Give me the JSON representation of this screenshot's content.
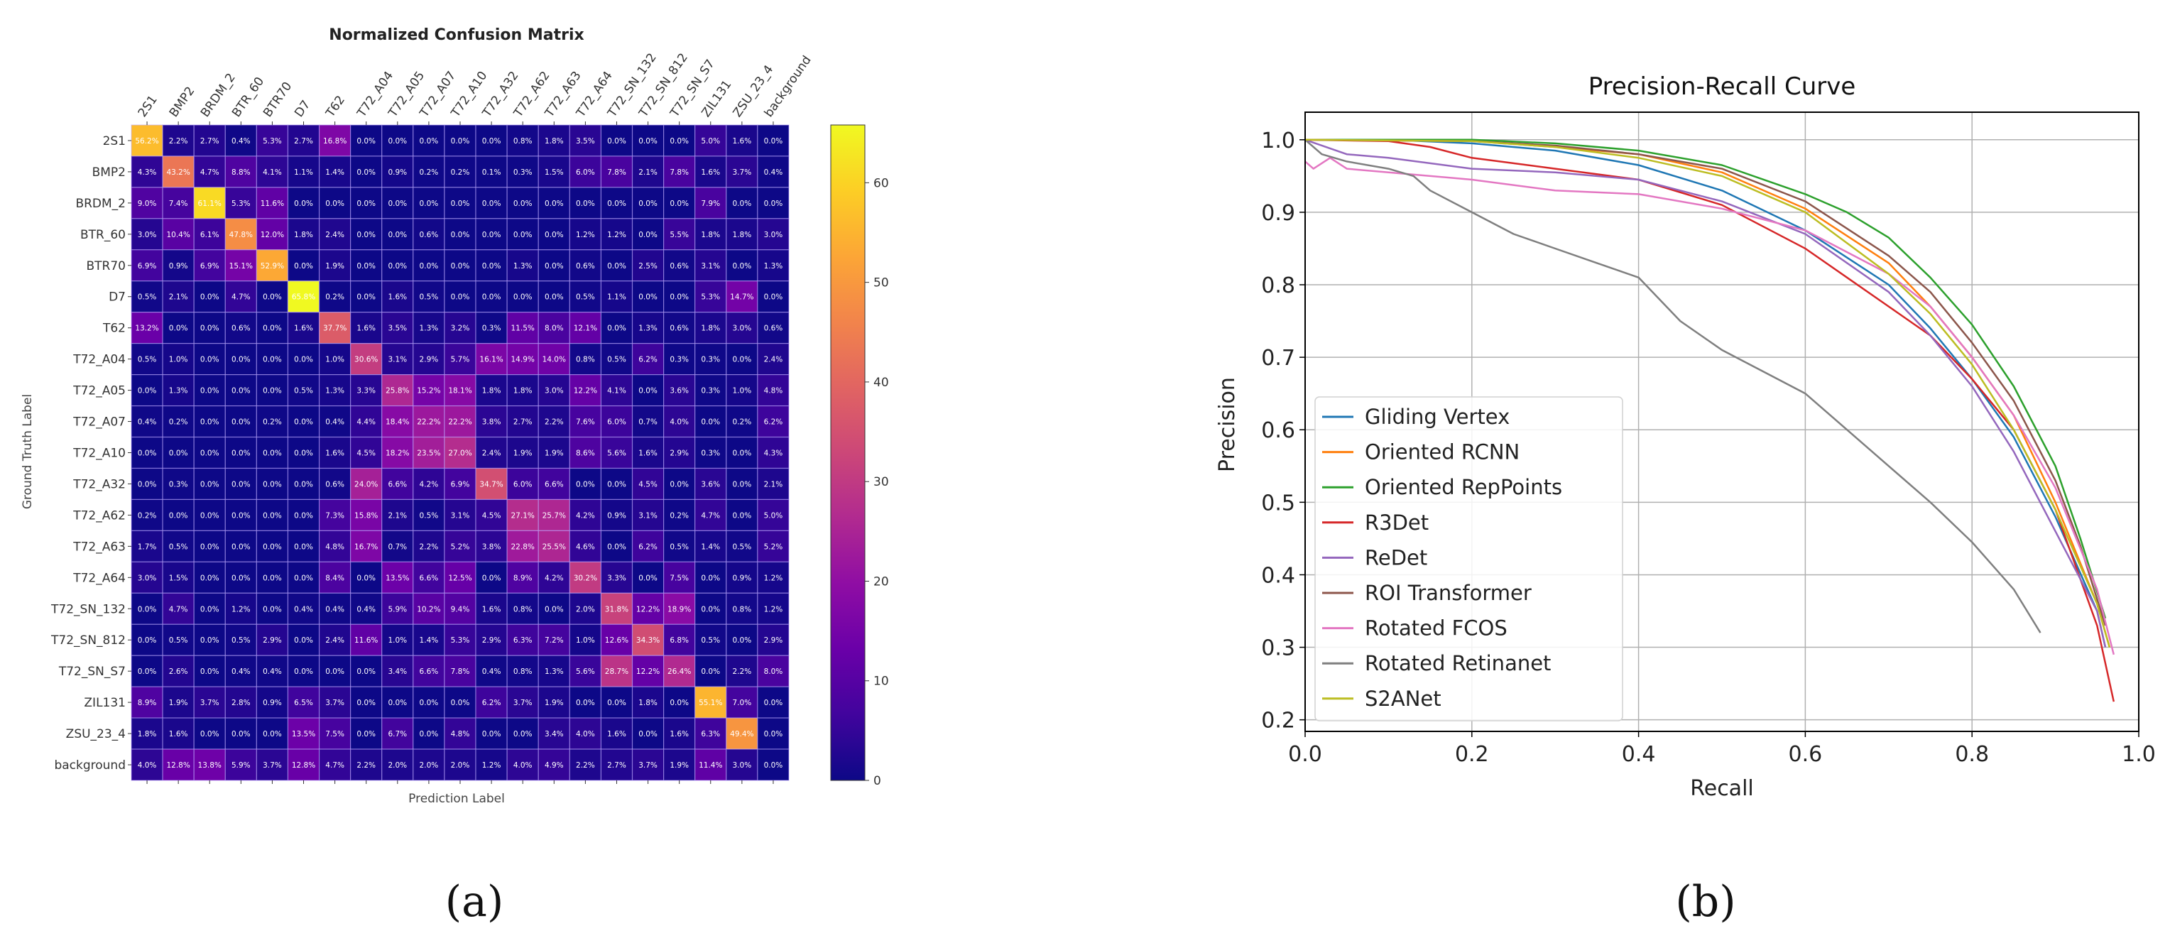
{
  "panel_labels": [
    "(a)",
    "(b)"
  ],
  "chart_data": [
    {
      "type": "heatmap",
      "title": "Normalized Confusion Matrix",
      "xlabel": "Prediction Label",
      "ylabel": "Ground Truth Label",
      "x_categories": [
        "2S1",
        "BMP2",
        "BRDM_2",
        "BTR_60",
        "BTR70",
        "D7",
        "T62",
        "T72_A04",
        "T72_A05",
        "T72_A07",
        "T72_A10",
        "T72_A32",
        "T72_A62",
        "T72_A63",
        "T72_A64",
        "T72_SN_132",
        "T72_SN_812",
        "T72_SN_S7",
        "ZIL131",
        "ZSU_23_4",
        "background"
      ],
      "y_categories": [
        "2S1",
        "BMP2",
        "BRDM_2",
        "BTR_60",
        "BTR70",
        "D7",
        "T62",
        "T72_A04",
        "T72_A05",
        "T72_A07",
        "T72_A10",
        "T72_A32",
        "T72_A62",
        "T72_A63",
        "T72_A64",
        "T72_SN_132",
        "T72_SN_812",
        "T72_SN_S7",
        "ZIL131",
        "ZSU_23_4",
        "background"
      ],
      "value_suffix": "%",
      "values": [
        [
          56.2,
          2.2,
          2.7,
          0.4,
          5.3,
          2.7,
          16.8,
          0.0,
          0.0,
          0.0,
          0.0,
          0.0,
          0.8,
          1.8,
          3.5,
          0.0,
          0.0,
          0.0,
          5.0,
          1.6,
          0.0
        ],
        [
          4.3,
          43.2,
          4.7,
          8.8,
          4.1,
          1.1,
          1.4,
          0.0,
          0.9,
          0.2,
          0.2,
          0.1,
          0.3,
          1.5,
          6.0,
          7.8,
          2.1,
          7.8,
          1.6,
          3.7,
          0.4
        ],
        [
          9.0,
          7.4,
          61.1,
          5.3,
          11.6,
          0.0,
          0.0,
          0.0,
          0.0,
          0.0,
          0.0,
          0.0,
          0.0,
          0.0,
          0.0,
          0.0,
          0.0,
          0.0,
          7.9,
          0.0,
          0.0
        ],
        [
          3.0,
          10.4,
          6.1,
          47.8,
          12.0,
          1.8,
          2.4,
          0.0,
          0.0,
          0.6,
          0.0,
          0.0,
          0.0,
          0.0,
          1.2,
          1.2,
          0.0,
          5.5,
          1.8,
          1.8,
          3.0
        ],
        [
          6.9,
          0.9,
          6.9,
          15.1,
          52.9,
          0.0,
          1.9,
          0.0,
          0.0,
          0.0,
          0.0,
          0.0,
          1.3,
          0.0,
          0.6,
          0.0,
          2.5,
          0.6,
          3.1,
          0.0,
          1.3
        ],
        [
          0.5,
          2.1,
          0.0,
          4.7,
          0.0,
          65.8,
          0.2,
          0.0,
          1.6,
          0.5,
          0.0,
          0.0,
          0.0,
          0.0,
          0.5,
          1.1,
          0.0,
          0.0,
          5.3,
          14.7,
          0.0
        ],
        [
          13.2,
          0.0,
          0.0,
          0.6,
          0.0,
          1.6,
          37.7,
          1.6,
          3.5,
          1.3,
          3.2,
          0.3,
          11.5,
          8.0,
          12.1,
          0.0,
          1.3,
          0.6,
          1.8,
          3.0,
          0.6
        ],
        [
          0.5,
          1.0,
          0.0,
          0.0,
          0.0,
          0.0,
          1.0,
          30.6,
          3.1,
          2.9,
          5.7,
          16.1,
          14.9,
          14.0,
          0.8,
          0.5,
          6.2,
          0.3,
          0.3,
          0.0,
          2.4
        ],
        [
          0.0,
          1.3,
          0.0,
          0.0,
          0.0,
          0.5,
          1.3,
          3.3,
          25.8,
          15.2,
          18.1,
          1.8,
          1.8,
          3.0,
          12.2,
          4.1,
          0.0,
          3.6,
          0.3,
          1.0,
          4.8
        ],
        [
          0.4,
          0.2,
          0.0,
          0.0,
          0.2,
          0.0,
          0.4,
          4.4,
          18.4,
          22.2,
          22.2,
          3.8,
          2.7,
          2.2,
          7.6,
          6.0,
          0.7,
          4.0,
          0.0,
          0.2,
          6.2
        ],
        [
          0.0,
          0.0,
          0.0,
          0.0,
          0.0,
          0.0,
          1.6,
          4.5,
          18.2,
          23.5,
          27.0,
          2.4,
          1.9,
          1.9,
          8.6,
          5.6,
          1.6,
          2.9,
          0.3,
          0.0,
          4.3
        ],
        [
          0.0,
          0.3,
          0.0,
          0.0,
          0.0,
          0.0,
          0.6,
          24.0,
          6.6,
          4.2,
          6.9,
          34.7,
          6.0,
          6.6,
          0.0,
          0.0,
          4.5,
          0.0,
          3.6,
          0.0,
          2.1
        ],
        [
          0.2,
          0.0,
          0.0,
          0.0,
          0.0,
          0.0,
          7.3,
          15.8,
          2.1,
          0.5,
          3.1,
          4.5,
          27.1,
          25.7,
          4.2,
          0.9,
          3.1,
          0.2,
          4.7,
          0.0,
          5.0
        ],
        [
          1.7,
          0.5,
          0.0,
          0.0,
          0.0,
          0.0,
          4.8,
          16.7,
          0.7,
          2.2,
          5.2,
          3.8,
          22.8,
          25.5,
          4.6,
          0.0,
          6.2,
          0.5,
          1.4,
          0.5,
          5.2
        ],
        [
          3.0,
          1.5,
          0.0,
          0.0,
          0.0,
          0.0,
          8.4,
          0.0,
          13.5,
          6.6,
          12.5,
          0.0,
          8.9,
          4.2,
          30.2,
          3.3,
          0.0,
          7.5,
          0.0,
          0.9,
          1.2
        ],
        [
          0.0,
          4.7,
          0.0,
          1.2,
          0.0,
          0.4,
          0.4,
          0.4,
          5.9,
          10.2,
          9.4,
          1.6,
          0.8,
          0.0,
          2.0,
          31.8,
          12.2,
          18.9,
          0.0,
          0.8,
          1.2
        ],
        [
          0.0,
          0.5,
          0.0,
          0.5,
          2.9,
          0.0,
          2.4,
          11.6,
          1.0,
          1.4,
          5.3,
          2.9,
          6.3,
          7.2,
          1.0,
          12.6,
          34.3,
          6.8,
          0.5,
          0.0,
          2.9
        ],
        [
          0.0,
          2.6,
          0.0,
          0.4,
          0.4,
          0.0,
          0.0,
          0.0,
          3.4,
          6.6,
          7.8,
          0.4,
          0.8,
          1.3,
          5.6,
          28.7,
          12.2,
          26.4,
          0.0,
          2.2,
          8.0
        ],
        [
          8.9,
          1.9,
          3.7,
          2.8,
          0.9,
          6.5,
          3.7,
          0.0,
          0.0,
          0.0,
          0.0,
          6.2,
          3.7,
          1.9,
          0.0,
          0.0,
          1.8,
          0.0,
          55.1,
          7.0,
          0.0
        ],
        [
          1.8,
          1.6,
          0.0,
          0.0,
          0.0,
          13.5,
          7.5,
          0.0,
          6.7,
          0.0,
          4.8,
          0.0,
          0.0,
          3.4,
          4.0,
          1.6,
          0.0,
          1.6,
          6.3,
          49.4,
          0.0
        ],
        [
          4.0,
          12.8,
          13.8,
          5.9,
          3.7,
          12.8,
          4.7,
          2.2,
          2.0,
          2.0,
          2.0,
          1.2,
          4.0,
          4.9,
          2.2,
          2.7,
          3.7,
          1.9,
          11.4,
          3.0,
          0.0
        ]
      ],
      "colormap": "plasma",
      "color_range": [
        0,
        65.8
      ],
      "colorbar_ticks": [
        0,
        10,
        20,
        30,
        40,
        50,
        60
      ],
      "colorbar_tick_labels": [
        "0",
        "10",
        "20",
        "30",
        "40",
        "50",
        "60"
      ]
    },
    {
      "type": "line",
      "title": "Precision-Recall Curve",
      "xlabel": "Recall",
      "ylabel": "Precision",
      "xlim": [
        0,
        1
      ],
      "ylim": [
        0.184,
        1.038
      ],
      "xticks": [
        0,
        0.2,
        0.4,
        0.6,
        0.8,
        1.0
      ],
      "xtick_labels": [
        "0.0",
        "0.2",
        "0.4",
        "0.6",
        "0.8",
        "1.0"
      ],
      "yticks": [
        0.2,
        0.3,
        0.4,
        0.5,
        0.6,
        0.7,
        0.8,
        0.9,
        1.0
      ],
      "ytick_labels": [
        "0.2",
        "0.3",
        "0.4",
        "0.5",
        "0.6",
        "0.7",
        "0.8",
        "0.9",
        "1.0"
      ],
      "grid": true,
      "legend": "center-left",
      "series": [
        {
          "name": "Gliding Vertex",
          "color": "#1f77b4",
          "points": [
            [
              0,
              1
            ],
            [
              0.1,
              1.0
            ],
            [
              0.2,
              0.995
            ],
            [
              0.3,
              0.985
            ],
            [
              0.4,
              0.965
            ],
            [
              0.5,
              0.93
            ],
            [
              0.6,
              0.875
            ],
            [
              0.7,
              0.8
            ],
            [
              0.75,
              0.74
            ],
            [
              0.8,
              0.67
            ],
            [
              0.85,
              0.59
            ],
            [
              0.9,
              0.48
            ],
            [
              0.95,
              0.35
            ],
            [
              0.96,
              0.3
            ]
          ]
        },
        {
          "name": "Oriented RCNN",
          "color": "#ff7f0e",
          "points": [
            [
              0,
              1
            ],
            [
              0.2,
              0.998
            ],
            [
              0.3,
              0.99
            ],
            [
              0.4,
              0.98
            ],
            [
              0.5,
              0.955
            ],
            [
              0.6,
              0.905
            ],
            [
              0.7,
              0.83
            ],
            [
              0.75,
              0.77
            ],
            [
              0.8,
              0.7
            ],
            [
              0.85,
              0.62
            ],
            [
              0.9,
              0.5
            ],
            [
              0.95,
              0.36
            ],
            [
              0.965,
              0.3
            ]
          ]
        },
        {
          "name": "Oriented RepPoints",
          "color": "#2ca02c",
          "points": [
            [
              0,
              1
            ],
            [
              0.2,
              1.0
            ],
            [
              0.3,
              0.995
            ],
            [
              0.4,
              0.985
            ],
            [
              0.5,
              0.965
            ],
            [
              0.6,
              0.925
            ],
            [
              0.65,
              0.9
            ],
            [
              0.7,
              0.865
            ],
            [
              0.75,
              0.81
            ],
            [
              0.8,
              0.745
            ],
            [
              0.85,
              0.66
            ],
            [
              0.9,
              0.55
            ],
            [
              0.93,
              0.45
            ],
            [
              0.96,
              0.34
            ]
          ]
        },
        {
          "name": "R3Det",
          "color": "#d62728",
          "points": [
            [
              0,
              1
            ],
            [
              0.1,
              0.998
            ],
            [
              0.15,
              0.99
            ],
            [
              0.2,
              0.975
            ],
            [
              0.3,
              0.96
            ],
            [
              0.4,
              0.945
            ],
            [
              0.5,
              0.91
            ],
            [
              0.6,
              0.85
            ],
            [
              0.65,
              0.81
            ],
            [
              0.7,
              0.77
            ],
            [
              0.75,
              0.73
            ],
            [
              0.8,
              0.67
            ],
            [
              0.85,
              0.6
            ],
            [
              0.9,
              0.49
            ],
            [
              0.95,
              0.33
            ],
            [
              0.97,
              0.225
            ]
          ]
        },
        {
          "name": "ReDet",
          "color": "#9467bd",
          "points": [
            [
              0,
              1
            ],
            [
              0.05,
              0.98
            ],
            [
              0.1,
              0.975
            ],
            [
              0.2,
              0.96
            ],
            [
              0.3,
              0.955
            ],
            [
              0.4,
              0.945
            ],
            [
              0.5,
              0.915
            ],
            [
              0.6,
              0.87
            ],
            [
              0.7,
              0.79
            ],
            [
              0.75,
              0.73
            ],
            [
              0.8,
              0.66
            ],
            [
              0.85,
              0.57
            ],
            [
              0.9,
              0.46
            ],
            [
              0.95,
              0.35
            ],
            [
              0.96,
              0.3
            ]
          ]
        },
        {
          "name": "ROI Transformer",
          "color": "#8c564b",
          "points": [
            [
              0,
              1
            ],
            [
              0.2,
              0.998
            ],
            [
              0.3,
              0.992
            ],
            [
              0.4,
              0.98
            ],
            [
              0.5,
              0.96
            ],
            [
              0.6,
              0.915
            ],
            [
              0.7,
              0.84
            ],
            [
              0.75,
              0.79
            ],
            [
              0.8,
              0.72
            ],
            [
              0.85,
              0.64
            ],
            [
              0.9,
              0.53
            ],
            [
              0.93,
              0.44
            ],
            [
              0.96,
              0.33
            ]
          ]
        },
        {
          "name": "Rotated FCOS",
          "color": "#e377c2",
          "points": [
            [
              0,
              0.97
            ],
            [
              0.01,
              0.96
            ],
            [
              0.03,
              0.975
            ],
            [
              0.05,
              0.96
            ],
            [
              0.1,
              0.955
            ],
            [
              0.2,
              0.945
            ],
            [
              0.3,
              0.93
            ],
            [
              0.4,
              0.925
            ],
            [
              0.5,
              0.905
            ],
            [
              0.6,
              0.875
            ],
            [
              0.7,
              0.815
            ],
            [
              0.75,
              0.77
            ],
            [
              0.8,
              0.7
            ],
            [
              0.85,
              0.62
            ],
            [
              0.9,
              0.52
            ],
            [
              0.95,
              0.38
            ],
            [
              0.97,
              0.29
            ]
          ]
        },
        {
          "name": "Rotated Retinanet",
          "color": "#7f7f7f",
          "points": [
            [
              0,
              1
            ],
            [
              0.02,
              0.98
            ],
            [
              0.05,
              0.97
            ],
            [
              0.1,
              0.96
            ],
            [
              0.13,
              0.95
            ],
            [
              0.15,
              0.93
            ],
            [
              0.2,
              0.9
            ],
            [
              0.25,
              0.87
            ],
            [
              0.3,
              0.85
            ],
            [
              0.35,
              0.83
            ],
            [
              0.4,
              0.81
            ],
            [
              0.45,
              0.75
            ],
            [
              0.5,
              0.71
            ],
            [
              0.55,
              0.68
            ],
            [
              0.6,
              0.65
            ],
            [
              0.65,
              0.6
            ],
            [
              0.7,
              0.55
            ],
            [
              0.75,
              0.5
            ],
            [
              0.8,
              0.445
            ],
            [
              0.85,
              0.38
            ],
            [
              0.882,
              0.32
            ]
          ]
        },
        {
          "name": "S2ANet",
          "color": "#bcbd22",
          "points": [
            [
              0,
              1
            ],
            [
              0.2,
              0.998
            ],
            [
              0.3,
              0.99
            ],
            [
              0.4,
              0.975
            ],
            [
              0.5,
              0.95
            ],
            [
              0.6,
              0.9
            ],
            [
              0.7,
              0.815
            ],
            [
              0.75,
              0.76
            ],
            [
              0.8,
              0.69
            ],
            [
              0.85,
              0.6
            ],
            [
              0.9,
              0.49
            ],
            [
              0.95,
              0.36
            ],
            [
              0.965,
              0.3
            ]
          ]
        }
      ]
    }
  ]
}
